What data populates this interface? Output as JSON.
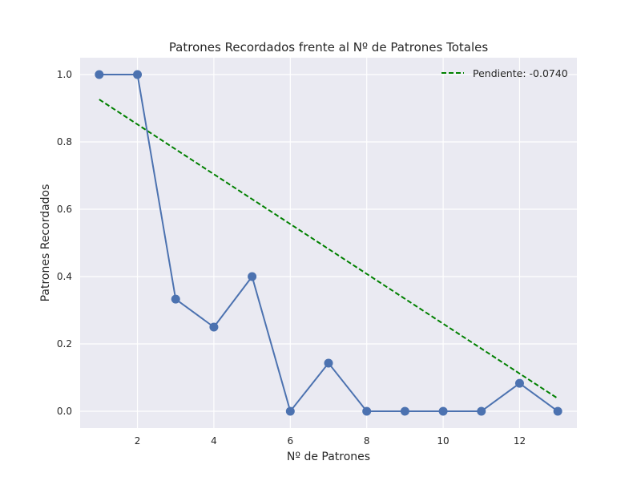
{
  "chart_data": {
    "type": "line",
    "title": "Patrones Recordados frente al Nº de Patrones Totales",
    "xlabel": "Nº de Patrones",
    "ylabel": "Patrones Recordados",
    "xlim": [
      0.5,
      13.5
    ],
    "ylim": [
      -0.05,
      1.05
    ],
    "xticks": [
      2,
      4,
      6,
      8,
      10,
      12
    ],
    "yticks": [
      0.0,
      0.2,
      0.4,
      0.6,
      0.8,
      1.0
    ],
    "xtick_labels": [
      "2",
      "4",
      "6",
      "8",
      "10",
      "12"
    ],
    "ytick_labels": [
      "0.0",
      "0.2",
      "0.4",
      "0.6",
      "0.8",
      "1.0"
    ],
    "grid": true,
    "legend_position": "top-right",
    "series": [
      {
        "color": "#4c72b0",
        "marker": "circle",
        "x": [
          1,
          2,
          3,
          4,
          5,
          6,
          7,
          8,
          9,
          10,
          11,
          12,
          13
        ],
        "y": [
          1.0,
          1.0,
          0.333,
          0.25,
          0.4,
          0.0,
          0.143,
          0.0,
          0.0,
          0.0,
          0.0,
          0.083,
          0.0
        ]
      },
      {
        "name": "Pendiente: -0.0740",
        "color": "#008000",
        "style": "dashed",
        "x": [
          1,
          13
        ],
        "y": [
          0.926,
          0.038
        ]
      }
    ],
    "background": "#eaeaf2",
    "grid_color": "#ffffff"
  }
}
